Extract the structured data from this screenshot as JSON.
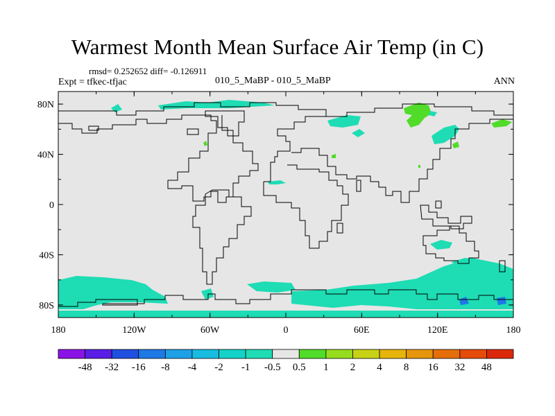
{
  "title": "Warmest Month Mean Surface Air Temp (in C)",
  "stats": "rmsd= 0.252652  diff= -0.126911",
  "expt": "Expt = tfkec-tfjac",
  "subtitle": "010_5_MaBP - 010_5_MaBP",
  "period": "ANN",
  "map": {
    "land_fill": "#e6e6e6",
    "lon_ticks": [
      "180",
      "120W",
      "60W",
      "0",
      "60E",
      "120E",
      "180"
    ],
    "lat_ticks": [
      "80N",
      "40N",
      "0",
      "40S",
      "80S"
    ],
    "lon_range": [
      -180,
      180
    ],
    "lat_range": [
      -90,
      90
    ]
  },
  "colorbar": {
    "labels": [
      "-48",
      "-32",
      "-16",
      "-8",
      "-4",
      "-2",
      "-1",
      "-0.5",
      "0.5",
      "1",
      "2",
      "4",
      "8",
      "16",
      "32",
      "48"
    ],
    "colors": [
      "#8a14e6",
      "#5a1ee6",
      "#2050e0",
      "#1e78e6",
      "#1ea0e6",
      "#18bce0",
      "#14d2c8",
      "#1edcb4",
      "#e6e6e6",
      "#50dc28",
      "#96dc1e",
      "#c8d214",
      "#e6b40a",
      "#e6960a",
      "#e66e0a",
      "#e64b0a",
      "#dc280a"
    ]
  }
}
